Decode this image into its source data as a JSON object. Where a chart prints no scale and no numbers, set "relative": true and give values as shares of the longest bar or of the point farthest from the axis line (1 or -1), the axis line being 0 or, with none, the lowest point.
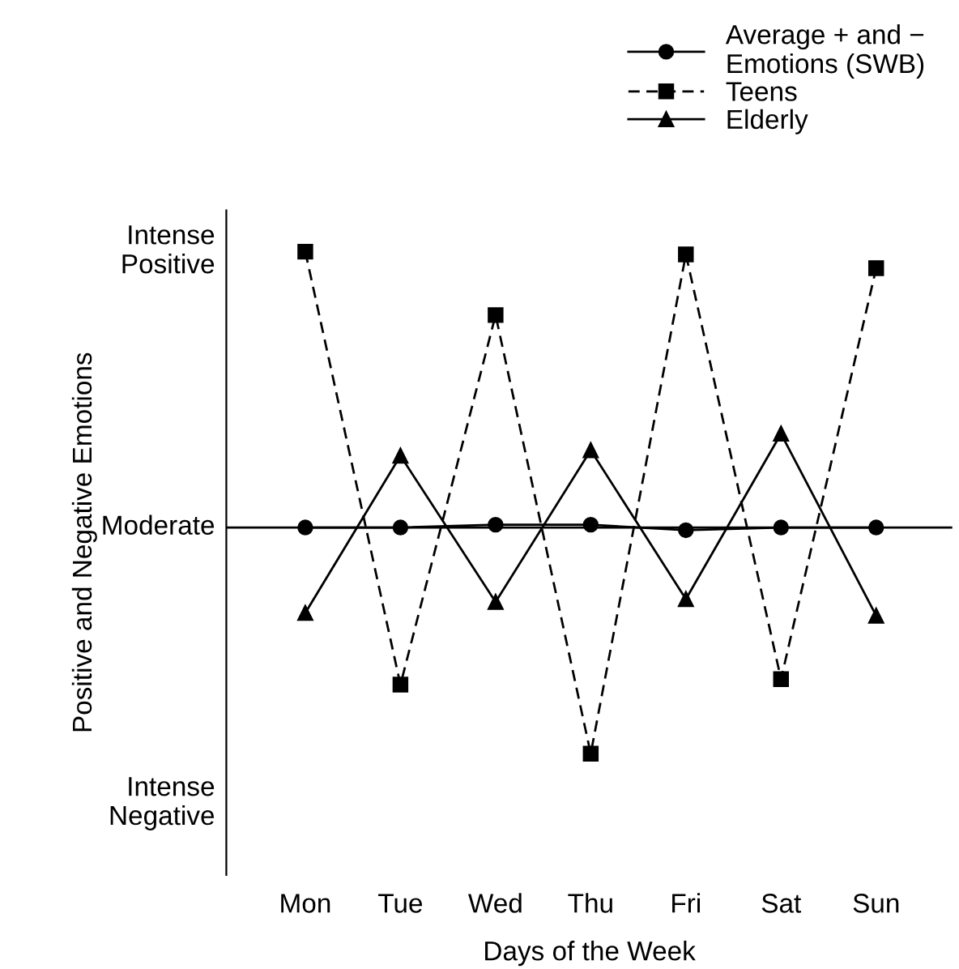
{
  "chart_data": {
    "type": "line",
    "xlabel": "Days of the Week",
    "ylabel": "Positive and Negative Emotions",
    "categories": [
      "Mon",
      "Tue",
      "Wed",
      "Thu",
      "Fri",
      "Sat",
      "Sun"
    ],
    "relative": true,
    "annotations": [
      "Intense\nPositive",
      "Moderate",
      "Intense\nNegative"
    ],
    "series": [
      {
        "name": "Average + and −\nEmotions (SWB)",
        "color": "#000000",
        "marker": "circle",
        "line_style": "solid",
        "values": [
          0,
          0,
          0.01,
          0.01,
          -0.01,
          0,
          0
        ]
      },
      {
        "name": "Teens",
        "color": "#000000",
        "marker": "square",
        "line_style": "dashed",
        "values": [
          1.0,
          -0.57,
          0.77,
          -0.82,
          0.99,
          -0.55,
          0.94
        ]
      },
      {
        "name": "Elderly",
        "color": "#000000",
        "marker": "triangle",
        "line_style": "solid",
        "values": [
          -0.31,
          0.26,
          -0.27,
          0.28,
          -0.26,
          0.34,
          -0.32
        ]
      }
    ],
    "ref_lines": [
      {
        "axis": "y",
        "value": 0,
        "color": "#000000",
        "line_style": "solid"
      }
    ],
    "grid": false,
    "legend": "top right"
  }
}
